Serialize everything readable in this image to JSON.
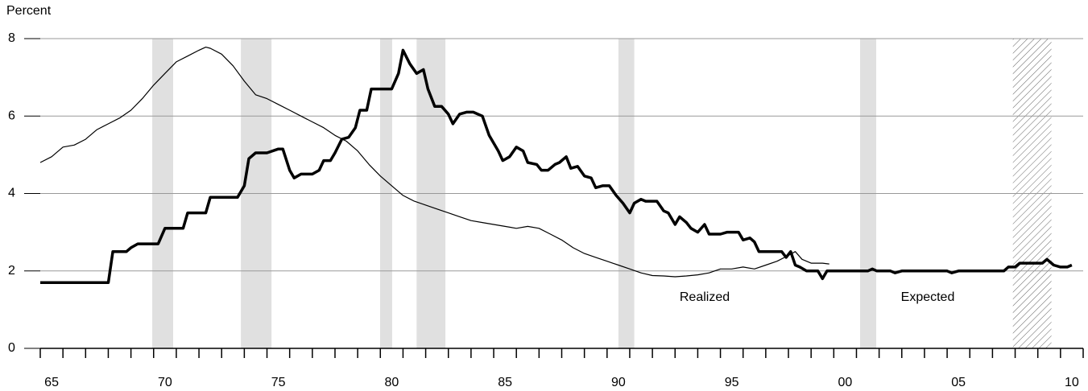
{
  "chart_data": {
    "type": "line",
    "y_label": "Percent",
    "xlim": [
      1965,
      2011
    ],
    "ylim": [
      0,
      8
    ],
    "yticks": [
      0,
      2,
      4,
      6,
      8
    ],
    "grid": true,
    "xticks": [
      {
        "value": 1965.5,
        "label": "65"
      },
      {
        "value": 1970.5,
        "label": "70"
      },
      {
        "value": 1975.5,
        "label": "75"
      },
      {
        "value": 1980.5,
        "label": "80"
      },
      {
        "value": 1985.5,
        "label": "85"
      },
      {
        "value": 1990.5,
        "label": "90"
      },
      {
        "value": 1995.5,
        "label": "95"
      },
      {
        "value": 2000.5,
        "label": "00"
      },
      {
        "value": 2005.5,
        "label": "05"
      },
      {
        "value": 2010.5,
        "label": "10"
      }
    ],
    "xminorticks": [
      1965,
      1966,
      1967,
      1968,
      1969,
      1970,
      1971,
      1972,
      1973,
      1974,
      1975,
      1976,
      1977,
      1978,
      1979,
      1980,
      1981,
      1982,
      1983,
      1984,
      1985,
      1986,
      1987,
      1988,
      1989,
      1990,
      1991,
      1992,
      1993,
      1994,
      1995,
      1996,
      1997,
      1998,
      1999,
      2000,
      2001,
      2002,
      2003,
      2004,
      2005,
      2006,
      2007,
      2008,
      2009,
      2010,
      2011
    ],
    "recessions": [
      [
        1969.94,
        1970.86
      ],
      [
        1973.85,
        1975.2
      ],
      [
        1979.99,
        1980.52
      ],
      [
        1981.6,
        1982.87
      ],
      [
        1990.5,
        1991.2
      ],
      [
        2001.16,
        2001.87
      ]
    ],
    "hatched_period": [
      2007.9,
      2009.6
    ],
    "series": [
      {
        "name": "Realized",
        "color": "#000000",
        "width": 1.2,
        "x": [
          1965,
          1965.5,
          1966,
          1966.5,
          1967,
          1967.5,
          1968,
          1968.5,
          1969,
          1969.5,
          1970,
          1970.5,
          1971,
          1971.5,
          1972,
          1972.3,
          1972.5,
          1973,
          1973.5,
          1974,
          1974.5,
          1975,
          1975.5,
          1976,
          1976.5,
          1977,
          1977.5,
          1978,
          1978.5,
          1979,
          1979.5,
          1980,
          1980.5,
          1981,
          1981.5,
          1982,
          1982.5,
          1983,
          1983.5,
          1984,
          1984.5,
          1985,
          1985.5,
          1986,
          1986.5,
          1987,
          1987.5,
          1988,
          1988.5,
          1989,
          1989.5,
          1990,
          1990.5,
          1991,
          1991.5,
          1992,
          1992.5,
          1993,
          1993.5,
          1994,
          1994.5,
          1995,
          1995.5,
          1996,
          1996.5,
          1997,
          1997.5,
          1998,
          1998.3,
          1998.6,
          1999,
          1999.5,
          1999.8
        ],
        "values": [
          4.8,
          4.95,
          5.2,
          5.25,
          5.4,
          5.65,
          5.8,
          5.95,
          6.15,
          6.45,
          6.8,
          7.1,
          7.4,
          7.55,
          7.7,
          7.78,
          7.75,
          7.6,
          7.3,
          6.9,
          6.55,
          6.45,
          6.3,
          6.15,
          6.0,
          5.85,
          5.7,
          5.5,
          5.35,
          5.1,
          4.75,
          4.45,
          4.2,
          3.95,
          3.8,
          3.7,
          3.6,
          3.5,
          3.4,
          3.3,
          3.25,
          3.2,
          3.15,
          3.1,
          3.15,
          3.1,
          2.95,
          2.8,
          2.6,
          2.45,
          2.35,
          2.25,
          2.15,
          2.05,
          1.95,
          1.88,
          1.87,
          1.85,
          1.87,
          1.9,
          1.95,
          2.05,
          2.05,
          2.1,
          2.05,
          2.15,
          2.25,
          2.4,
          2.5,
          2.3,
          2.2,
          2.2,
          2.18
        ]
      },
      {
        "name": "Expected",
        "color": "#000000",
        "width": 3.5,
        "x": [
          1965,
          1968,
          1968.2,
          1968.8,
          1969,
          1969.3,
          1970.2,
          1970.5,
          1971.3,
          1971.5,
          1972.3,
          1972.5,
          1973.7,
          1974,
          1974.2,
          1974.5,
          1975,
          1975.5,
          1975.7,
          1976,
          1976.2,
          1976.5,
          1977,
          1977.3,
          1977.5,
          1977.8,
          1978,
          1978.3,
          1978.6,
          1978.9,
          1979.1,
          1979.4,
          1979.6,
          1980.5,
          1980.8,
          1981,
          1981.3,
          1981.6,
          1981.9,
          1982.1,
          1982.4,
          1982.7,
          1983,
          1983.2,
          1983.5,
          1983.8,
          1984.1,
          1984.5,
          1984.8,
          1985.2,
          1985.4,
          1985.7,
          1986,
          1986.3,
          1986.5,
          1986.9,
          1987.1,
          1987.4,
          1987.7,
          1987.9,
          1988.2,
          1988.4,
          1988.7,
          1989,
          1989.3,
          1989.5,
          1989.8,
          1990.1,
          1990.4,
          1990.7,
          1991,
          1991.2,
          1991.5,
          1991.7,
          1992.2,
          1992.5,
          1992.7,
          1993,
          1993.2,
          1993.5,
          1993.7,
          1994,
          1994.3,
          1994.5,
          1995,
          1995.3,
          1995.8,
          1996,
          1996.3,
          1996.5,
          1996.7,
          1997.7,
          1997.9,
          1998.1,
          1998.3,
          1998.5,
          1998.8,
          1999.3,
          1999.5,
          1999.7,
          2001.5,
          2001.7,
          2001.9,
          2002.5,
          2002.7,
          2003,
          2005,
          2005.2,
          2005.5,
          2007.5,
          2007.7,
          2008,
          2008.2,
          2009.2,
          2009.4,
          2009.7,
          2010,
          2010.3,
          2010.5
        ],
        "values": [
          1.7,
          1.7,
          2.5,
          2.5,
          2.6,
          2.7,
          2.7,
          3.1,
          3.1,
          3.5,
          3.5,
          3.9,
          3.9,
          4.2,
          4.9,
          5.05,
          5.05,
          5.15,
          5.15,
          4.6,
          4.4,
          4.5,
          4.5,
          4.6,
          4.85,
          4.85,
          5.05,
          5.4,
          5.45,
          5.7,
          6.15,
          6.15,
          6.7,
          6.7,
          7.1,
          7.7,
          7.35,
          7.1,
          7.2,
          6.7,
          6.25,
          6.25,
          6.05,
          5.8,
          6.05,
          6.1,
          6.1,
          6.0,
          5.5,
          5.1,
          4.85,
          4.95,
          5.2,
          5.1,
          4.8,
          4.75,
          4.6,
          4.6,
          4.75,
          4.8,
          4.95,
          4.65,
          4.7,
          4.45,
          4.4,
          4.15,
          4.2,
          4.2,
          3.95,
          3.75,
          3.5,
          3.75,
          3.85,
          3.8,
          3.8,
          3.55,
          3.5,
          3.2,
          3.4,
          3.25,
          3.1,
          3.0,
          3.2,
          2.95,
          2.95,
          3.0,
          3.0,
          2.8,
          2.85,
          2.75,
          2.5,
          2.5,
          2.35,
          2.5,
          2.15,
          2.1,
          2.0,
          2.0,
          1.8,
          2.0,
          2.0,
          2.05,
          2.0,
          2.0,
          1.95,
          2.0,
          2.0,
          1.95,
          2.0,
          2.0,
          2.1,
          2.1,
          2.2,
          2.2,
          2.3,
          2.15,
          2.1,
          2.1,
          2.15
        ]
      }
    ]
  }
}
